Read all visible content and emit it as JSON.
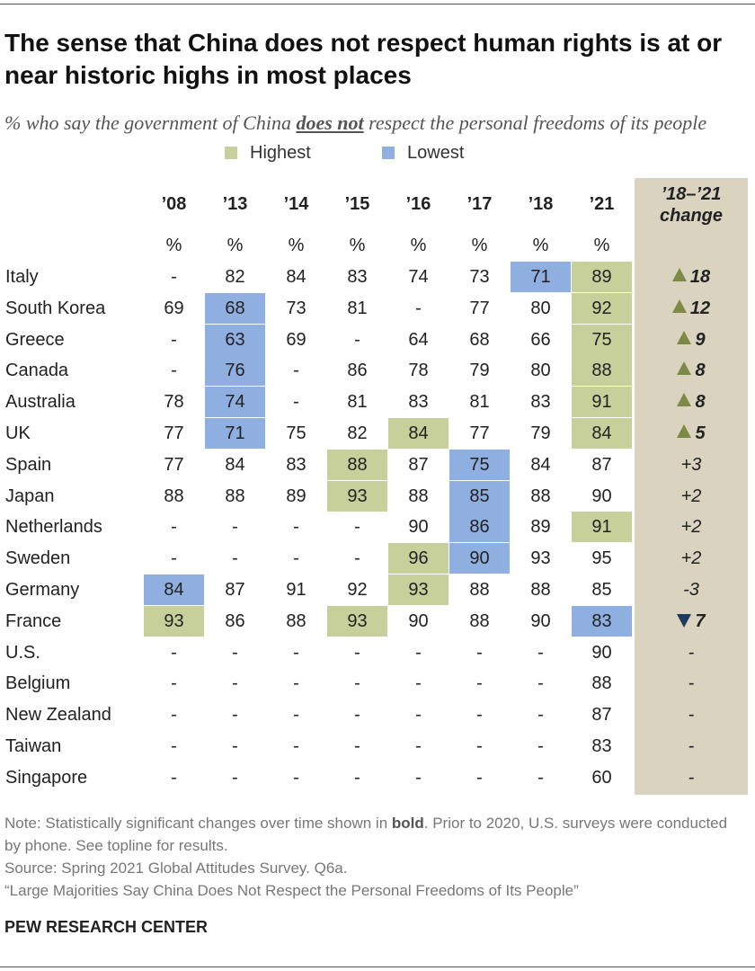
{
  "header": {
    "title": "The sense that China does not respect human rights is at or near historic highs in most places",
    "subtitle": {
      "before": "% who say the government of China ",
      "emphasis": "does not",
      "after": " respect the personal freedoms of its people"
    }
  },
  "legend": [
    {
      "name": "Highest",
      "color": "#c7d09b"
    },
    {
      "name": "Lowest",
      "color": "#8eafe0"
    }
  ],
  "table": {
    "columns": [
      "’08",
      "’13",
      "’14",
      "’15",
      "’16",
      "’17",
      "’18",
      "’21"
    ],
    "change_header": [
      "’18–’21",
      "change"
    ],
    "units": [
      "%",
      "%",
      "%",
      "%",
      "%",
      "%",
      "%",
      "%"
    ],
    "rows": [
      {
        "label": "Italy",
        "cells": [
          "-",
          82,
          84,
          83,
          74,
          73,
          71,
          89
        ],
        "highest": [
          7
        ],
        "lowest": [
          6
        ],
        "change": 18,
        "trend": "up"
      },
      {
        "label": "South Korea",
        "cells": [
          69,
          68,
          73,
          81,
          "-",
          77,
          80,
          92
        ],
        "highest": [
          7
        ],
        "lowest": [
          1
        ],
        "change": 12,
        "trend": "up"
      },
      {
        "label": "Greece",
        "cells": [
          "-",
          63,
          69,
          "-",
          64,
          68,
          66,
          75
        ],
        "highest": [
          7
        ],
        "lowest": [
          1
        ],
        "change": 9,
        "trend": "up"
      },
      {
        "label": "Canada",
        "cells": [
          "-",
          76,
          "-",
          86,
          78,
          79,
          80,
          88
        ],
        "highest": [
          7
        ],
        "lowest": [
          1
        ],
        "change": 8,
        "trend": "up"
      },
      {
        "label": "Australia",
        "cells": [
          78,
          74,
          "-",
          81,
          83,
          81,
          83,
          91
        ],
        "highest": [
          7
        ],
        "lowest": [
          1
        ],
        "change": 8,
        "trend": "up"
      },
      {
        "label": "UK",
        "cells": [
          77,
          71,
          75,
          82,
          84,
          77,
          79,
          84
        ],
        "highest": [
          4,
          7
        ],
        "lowest": [
          1
        ],
        "change": 5,
        "trend": "up"
      },
      {
        "label": "Spain",
        "cells": [
          77,
          84,
          83,
          88,
          87,
          75,
          84,
          87
        ],
        "highest": [
          3
        ],
        "lowest": [
          5
        ],
        "change": "+3"
      },
      {
        "label": "Japan",
        "cells": [
          88,
          88,
          89,
          93,
          88,
          85,
          88,
          90
        ],
        "highest": [
          3
        ],
        "lowest": [
          5
        ],
        "change": "+2"
      },
      {
        "label": "Netherlands",
        "cells": [
          "-",
          "-",
          "-",
          "-",
          90,
          86,
          89,
          91
        ],
        "highest": [
          7
        ],
        "lowest": [
          5
        ],
        "change": "+2"
      },
      {
        "label": "Sweden",
        "cells": [
          "-",
          "-",
          "-",
          "-",
          96,
          90,
          93,
          95
        ],
        "highest": [
          4
        ],
        "lowest": [
          5
        ],
        "change": "+2"
      },
      {
        "label": "Germany",
        "cells": [
          84,
          87,
          91,
          92,
          93,
          88,
          88,
          85
        ],
        "highest": [
          4
        ],
        "lowest": [
          0
        ],
        "change": "-3"
      },
      {
        "label": "France",
        "cells": [
          93,
          86,
          88,
          93,
          90,
          88,
          90,
          83
        ],
        "highest": [
          0,
          3
        ],
        "lowest": [
          7
        ],
        "change": 7,
        "trend": "down"
      },
      {
        "label": "U.S.",
        "cells": [
          "-",
          "-",
          "-",
          "-",
          "-",
          "-",
          "-",
          90
        ],
        "highest": [],
        "lowest": [],
        "change": "-"
      },
      {
        "label": "Belgium",
        "cells": [
          "-",
          "-",
          "-",
          "-",
          "-",
          "-",
          "-",
          88
        ],
        "highest": [],
        "lowest": [],
        "change": "-"
      },
      {
        "label": "New Zealand",
        "cells": [
          "-",
          "-",
          "-",
          "-",
          "-",
          "-",
          "-",
          87
        ],
        "highest": [],
        "lowest": [],
        "change": "-"
      },
      {
        "label": "Taiwan",
        "cells": [
          "-",
          "-",
          "-",
          "-",
          "-",
          "-",
          "-",
          83
        ],
        "highest": [],
        "lowest": [],
        "change": "-"
      },
      {
        "label": "Singapore",
        "cells": [
          "-",
          "-",
          "-",
          "-",
          "-",
          "-",
          "-",
          60
        ],
        "highest": [],
        "lowest": [],
        "change": "-"
      }
    ]
  },
  "footer": {
    "note": {
      "before": "Note: Statistically significant changes over time shown in ",
      "bold": "bold",
      "after": ". Prior to 2020, U.S. surveys were conducted by phone. See topline for results."
    },
    "source": "Source: Spring 2021 Global Attitudes Survey. Q6a.",
    "report": "“Large Majorities Say China Does Not Respect the Personal Freedoms of Its People”",
    "brand": "PEW RESEARCH CENTER"
  }
}
